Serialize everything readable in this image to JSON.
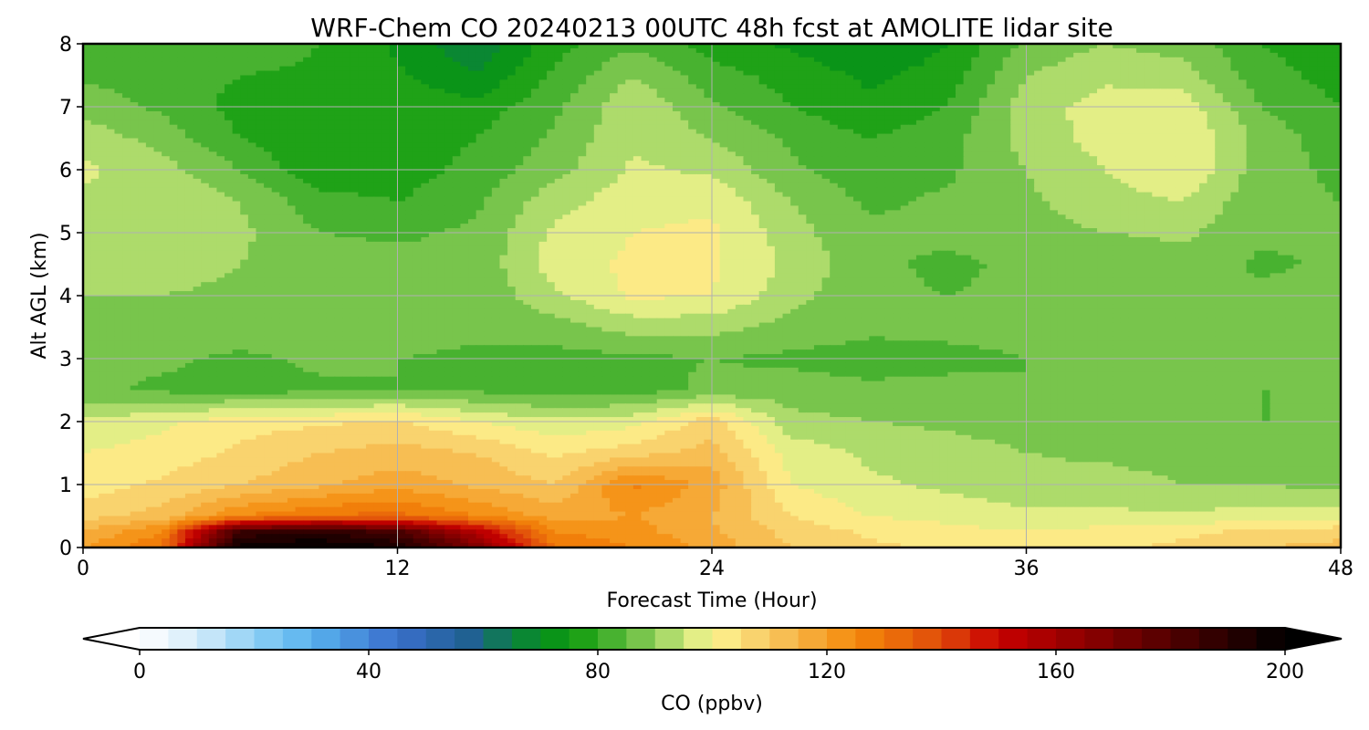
{
  "chart_data": {
    "type": "heatmap",
    "title": "WRF-Chem CO  20240213 00UTC 48h fcst at AMOLITE lidar site",
    "xlabel": "Forecast Time (Hour)",
    "ylabel": "Alt AGL (km)",
    "xlim": [
      0,
      48
    ],
    "ylim": [
      0,
      8
    ],
    "xticks": [
      0,
      12,
      24,
      36,
      48
    ],
    "yticks": [
      0,
      1,
      2,
      3,
      4,
      5,
      6,
      7,
      8
    ],
    "grid": true,
    "x": [
      0,
      3,
      6,
      9,
      12,
      15,
      18,
      21,
      24,
      27,
      30,
      33,
      36,
      39,
      42,
      45,
      48
    ],
    "y": [
      0,
      0.25,
      0.5,
      1,
      1.5,
      2,
      2.5,
      3,
      3.5,
      4,
      4.5,
      5,
      5.5,
      6,
      6.5,
      7,
      7.5,
      8
    ],
    "values": [
      [
        120,
        130,
        200,
        200,
        195,
        170,
        130,
        125,
        118,
        110,
        106,
        104,
        102,
        104,
        106,
        110,
        112
      ],
      [
        115,
        125,
        185,
        190,
        182,
        155,
        125,
        122,
        116,
        108,
        104,
        102,
        100,
        102,
        104,
        106,
        108
      ],
      [
        108,
        112,
        125,
        130,
        132,
        125,
        118,
        120,
        115,
        105,
        100,
        98,
        96,
        96,
        96,
        97,
        98
      ],
      [
        102,
        106,
        110,
        114,
        118,
        114,
        110,
        126,
        118,
        100,
        96,
        94,
        92,
        92,
        90,
        90,
        88
      ],
      [
        100,
        102,
        106,
        110,
        112,
        110,
        104,
        108,
        112,
        98,
        94,
        92,
        90,
        89,
        88,
        87,
        86
      ],
      [
        96,
        99,
        103,
        104,
        106,
        100,
        96,
        98,
        108,
        92,
        90,
        89,
        88,
        87,
        86,
        85,
        85
      ],
      [
        86,
        84,
        83,
        84,
        85,
        84,
        82,
        83,
        86,
        87,
        86,
        86,
        85,
        86,
        86,
        85,
        85
      ],
      [
        87,
        86,
        84,
        86,
        85,
        84,
        83,
        84,
        85,
        84,
        83,
        84,
        85,
        86,
        87,
        86,
        86
      ],
      [
        90,
        89,
        88,
        89,
        88,
        86,
        88,
        92,
        92,
        88,
        86,
        86,
        86,
        86,
        87,
        86,
        88
      ],
      [
        90,
        90,
        89,
        89,
        88,
        86,
        94,
        101,
        100,
        92,
        86,
        85,
        86,
        87,
        88,
        86,
        88
      ],
      [
        91,
        92,
        90,
        88,
        87,
        86,
        98,
        101,
        101,
        94,
        86,
        84,
        86,
        86,
        88,
        84,
        86
      ],
      [
        93,
        95,
        91,
        85,
        84,
        86,
        96,
        100,
        101,
        92,
        86,
        86,
        88,
        90,
        91,
        86,
        86
      ],
      [
        94,
        95,
        90,
        82,
        80,
        84,
        93,
        98,
        99,
        90,
        84,
        86,
        89,
        93,
        95,
        86,
        85
      ],
      [
        96,
        92,
        85,
        76,
        77,
        82,
        88,
        96,
        94,
        86,
        82,
        84,
        90,
        95,
        100,
        87,
        84
      ],
      [
        93,
        88,
        80,
        75,
        76,
        80,
        86,
        94,
        90,
        84,
        80,
        83,
        92,
        97,
        100,
        88,
        82
      ],
      [
        88,
        84,
        78,
        77,
        78,
        77,
        84,
        94,
        86,
        80,
        76,
        80,
        93,
        97,
        98,
        85,
        80
      ],
      [
        84,
        83,
        80,
        79,
        76,
        70,
        81,
        90,
        82,
        78,
        74,
        77,
        90,
        94,
        92,
        82,
        78
      ],
      [
        82,
        84,
        84,
        80,
        74,
        66,
        78,
        84,
        78,
        74,
        70,
        75,
        86,
        90,
        88,
        80,
        76
      ]
    ],
    "colorbar": {
      "label": "CO  (ppbv)",
      "min": 0,
      "max": 200,
      "step": 5,
      "ticks": [
        0,
        40,
        80,
        120,
        160,
        200
      ],
      "extend": "both"
    },
    "colormap": [
      [
        0,
        "#ffffff"
      ],
      [
        10,
        "#d6ecfa"
      ],
      [
        20,
        "#8fd0f5"
      ],
      [
        30,
        "#58b2ee"
      ],
      [
        45,
        "#3a6fcc"
      ],
      [
        58,
        "#1f6090"
      ],
      [
        65,
        "#0a8040"
      ],
      [
        75,
        "#0a9a0a"
      ],
      [
        85,
        "#5dba3c"
      ],
      [
        95,
        "#c8e67a"
      ],
      [
        100,
        "#fdf592"
      ],
      [
        110,
        "#f7c862"
      ],
      [
        125,
        "#f48a0a"
      ],
      [
        140,
        "#e04a0a"
      ],
      [
        150,
        "#c80000"
      ],
      [
        170,
        "#7a0000"
      ],
      [
        200,
        "#000000"
      ]
    ]
  }
}
